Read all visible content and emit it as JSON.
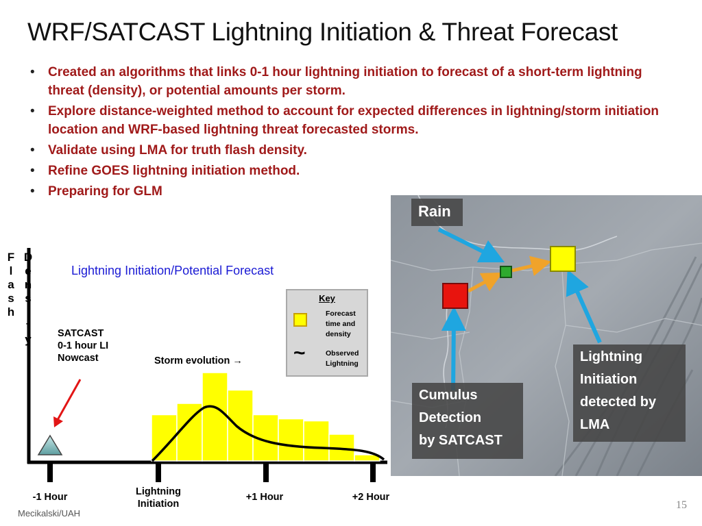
{
  "slide": {
    "title": "WRF/SATCAST Lightning Initiation & Threat Forecast",
    "bullets": [
      "Created an algorithms that links 0-1 hour lightning initiation to forecast of a short-term lightning threat (density), or potential amounts per storm.",
      "Explore distance-weighted method to account for expected differences in lightning/storm initiation location and WRF-based lightning threat forecasted storms.",
      "Validate using LMA for truth flash density.",
      "Refine GOES lightning initiation method.",
      "Preparing for GLM"
    ],
    "footer": "Mecikalski/UAH",
    "page_number": "15"
  },
  "diagram": {
    "title": "Lightning Initiation/Potential Forecast",
    "y_axis_label_1": "Flash",
    "y_axis_label_2": "Density",
    "satcast_label": [
      "SATCAST",
      "0-1 hour LI",
      "Nowcast"
    ],
    "storm_evolution": "Storm evolution →",
    "key": {
      "title": "Key",
      "forecast_label": [
        "Forecast",
        "time and",
        "density"
      ],
      "observed_label": [
        "Observed",
        "Lightning"
      ],
      "observed_symbol": "~"
    },
    "x_labels": {
      "minus1": "-1 Hour",
      "li": [
        "Lightning",
        "Initiation"
      ],
      "plus1": "+1 Hour",
      "plus2": "+2 Hour"
    },
    "bar_color": "#ffff00",
    "bars_relative_density": [
      0.45,
      0.56,
      0.86,
      0.69,
      0.45,
      0.41,
      0.39,
      0.26,
      0.06
    ]
  },
  "map": {
    "callouts": {
      "rain": "Rain",
      "cumulus": [
        "Cumulus",
        "Detection",
        "by SATCAST"
      ],
      "lightning": [
        "Lightning",
        "Initiation",
        "detected by",
        "LMA"
      ]
    },
    "colors": {
      "red_box": "#e8140e",
      "green_box": "#2eaa2e",
      "yellow_box": "#ffff00",
      "arrow_blue": "#1fa6e0",
      "arrow_orange": "#f0a32a"
    }
  }
}
